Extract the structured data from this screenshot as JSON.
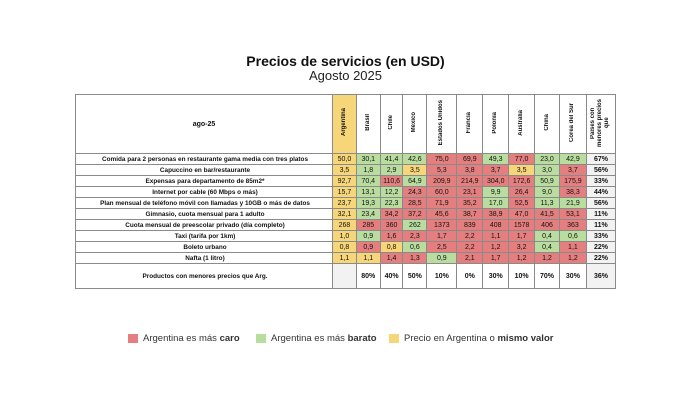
{
  "title": "Precios de servicios (en USD)",
  "subtitle": "Agosto 2025",
  "table": {
    "corner": "ago-25",
    "columns": [
      "Argentina",
      "Brasil",
      "Chile",
      "México",
      "Estados Unidos",
      "Francia",
      "Polonia",
      "Australia",
      "China",
      "Corea del Sur",
      "Países con menores precios que"
    ],
    "rows": [
      {
        "label": "Comida para 2 personas en restaurante gama media con tres platos",
        "values": [
          "50,0",
          "30,1",
          "41,4",
          "42,6",
          "75,0",
          "69,9",
          "49,3",
          "77,0",
          "23,0",
          "42,9"
        ],
        "states": [
          "ar",
          "lo",
          "lo",
          "lo",
          "hi",
          "hi",
          "lo",
          "hi",
          "lo",
          "lo"
        ],
        "pct": "67%"
      },
      {
        "label": "Capuccino en bar/restaurante",
        "values": [
          "3,5",
          "1,8",
          "2,9",
          "3,5",
          "5,3",
          "3,8",
          "3,7",
          "3,5",
          "3,0",
          "3,7"
        ],
        "states": [
          "ar",
          "lo",
          "lo",
          "ar",
          "hi",
          "hi",
          "hi",
          "ar",
          "lo",
          "hi"
        ],
        "pct": "56%"
      },
      {
        "label": "Expensas para departamento de 85m2*",
        "values": [
          "92,7",
          "70,4",
          "110,6",
          "64,9",
          "209,9",
          "214,9",
          "304,0",
          "172,6",
          "50,9",
          "175,9"
        ],
        "states": [
          "ar",
          "lo",
          "hi",
          "lo",
          "hi",
          "hi",
          "hi",
          "hi",
          "lo",
          "hi"
        ],
        "pct": "33%"
      },
      {
        "label": "Internet por cable (60 Mbps o más)",
        "values": [
          "15,7",
          "13,1",
          "12,2",
          "24,3",
          "60,0",
          "23,1",
          "9,9",
          "26,4",
          "9,0",
          "38,3"
        ],
        "states": [
          "ar",
          "lo",
          "lo",
          "hi",
          "hi",
          "hi",
          "lo",
          "hi",
          "lo",
          "hi"
        ],
        "pct": "44%"
      },
      {
        "label": "Plan mensual de teléfono móvil con llamadas y 10GB o más de datos",
        "values": [
          "23,7",
          "19,3",
          "22,3",
          "28,5",
          "71,9",
          "35,2",
          "17,0",
          "52,5",
          "11,3",
          "21,9"
        ],
        "states": [
          "ar",
          "lo",
          "lo",
          "hi",
          "hi",
          "hi",
          "lo",
          "hi",
          "lo",
          "lo"
        ],
        "pct": "56%"
      },
      {
        "label": "Gimnasio, cuota mensual para 1 adulto",
        "values": [
          "32,1",
          "23,4",
          "34,2",
          "37,2",
          "45,6",
          "38,7",
          "38,9",
          "47,0",
          "41,5",
          "53,1"
        ],
        "states": [
          "ar",
          "lo",
          "hi",
          "hi",
          "hi",
          "hi",
          "hi",
          "hi",
          "hi",
          "hi"
        ],
        "pct": "11%"
      },
      {
        "label": "Cuota mensual de preescolar privado (día completo)",
        "values": [
          "268",
          "285",
          "360",
          "262",
          "1373",
          "839",
          "408",
          "1578",
          "406",
          "363"
        ],
        "states": [
          "ar",
          "hi",
          "hi",
          "lo",
          "hi",
          "hi",
          "hi",
          "hi",
          "hi",
          "hi"
        ],
        "pct": "11%"
      },
      {
        "label": "Taxi (tarifa por 1km)",
        "values": [
          "1,0",
          "0,9",
          "1,6",
          "2,3",
          "1,7",
          "2,2",
          "1,1",
          "1,7",
          "0,4",
          "0,6"
        ],
        "states": [
          "ar",
          "lo",
          "hi",
          "hi",
          "hi",
          "hi",
          "hi",
          "hi",
          "lo",
          "lo"
        ],
        "pct": "33%"
      },
      {
        "label": "Boleto urbano",
        "values": [
          "0,8",
          "0,9",
          "0,8",
          "0,6",
          "2,5",
          "2,2",
          "1,2",
          "3,2",
          "0,4",
          "1,1"
        ],
        "states": [
          "ar",
          "hi",
          "ar",
          "lo",
          "hi",
          "hi",
          "hi",
          "hi",
          "lo",
          "hi"
        ],
        "pct": "22%"
      },
      {
        "label": "Nafta (1 litro)",
        "values": [
          "1,1",
          "1,1",
          "1,4",
          "1,3",
          "0,9",
          "2,1",
          "1,7",
          "1,2",
          "1,2",
          "1,2"
        ],
        "states": [
          "ar",
          "ar",
          "hi",
          "hi",
          "lo",
          "hi",
          "hi",
          "hi",
          "hi",
          "hi"
        ],
        "pct": "22%"
      }
    ],
    "summary": {
      "label": "Productos con menores precios que Arg.",
      "values": [
        "",
        "80%",
        "40%",
        "50%",
        "10%",
        "0%",
        "30%",
        "10%",
        "70%",
        "30%"
      ],
      "pct": "36%"
    }
  },
  "legend": [
    {
      "color": "#e57f7f",
      "text": "Argentina es más ",
      "bold": "caro"
    },
    {
      "color": "#b9dd9f",
      "text": "Argentina es más ",
      "bold": "barato"
    },
    {
      "color": "#f7d679",
      "text": "Precio en Argentina o ",
      "bold": "mismo valor"
    }
  ]
}
